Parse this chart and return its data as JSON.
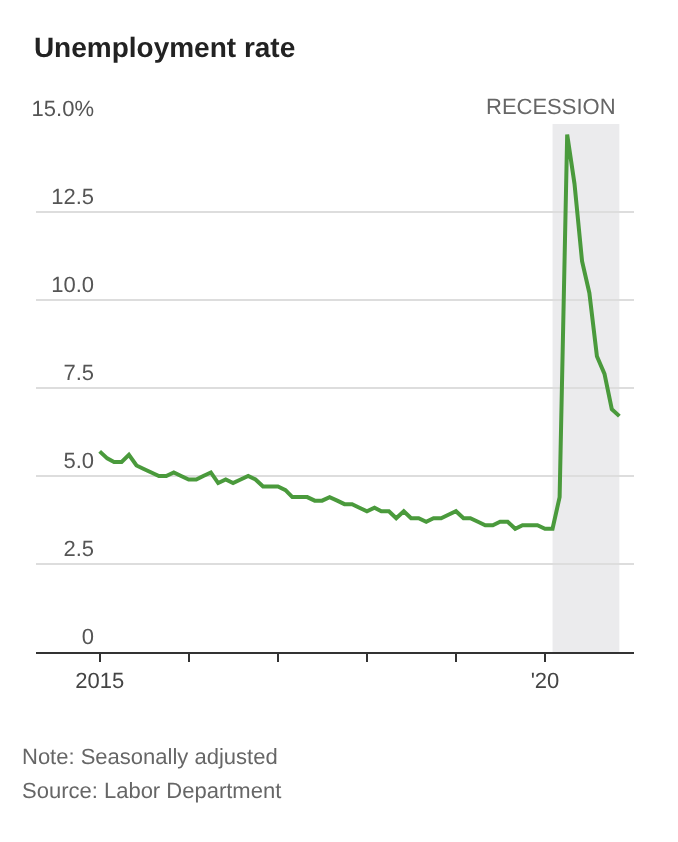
{
  "chart_data": {
    "type": "line",
    "title": "Unemployment rate",
    "x": [
      "2015-01",
      "2015-02",
      "2015-03",
      "2015-04",
      "2015-05",
      "2015-06",
      "2015-07",
      "2015-08",
      "2015-09",
      "2015-10",
      "2015-11",
      "2015-12",
      "2016-01",
      "2016-02",
      "2016-03",
      "2016-04",
      "2016-05",
      "2016-06",
      "2016-07",
      "2016-08",
      "2016-09",
      "2016-10",
      "2016-11",
      "2016-12",
      "2017-01",
      "2017-02",
      "2017-03",
      "2017-04",
      "2017-05",
      "2017-06",
      "2017-07",
      "2017-08",
      "2017-09",
      "2017-10",
      "2017-11",
      "2017-12",
      "2018-01",
      "2018-02",
      "2018-03",
      "2018-04",
      "2018-05",
      "2018-06",
      "2018-07",
      "2018-08",
      "2018-09",
      "2018-10",
      "2018-11",
      "2018-12",
      "2019-01",
      "2019-02",
      "2019-03",
      "2019-04",
      "2019-05",
      "2019-06",
      "2019-07",
      "2019-08",
      "2019-09",
      "2019-10",
      "2019-11",
      "2019-12",
      "2020-01",
      "2020-02",
      "2020-03",
      "2020-04",
      "2020-05",
      "2020-06",
      "2020-07",
      "2020-08",
      "2020-09",
      "2020-10",
      "2020-11"
    ],
    "series": [
      {
        "color": "#4a9a3c",
        "values": [
          5.7,
          5.5,
          5.4,
          5.4,
          5.6,
          5.3,
          5.2,
          5.1,
          5.0,
          5.0,
          5.1,
          5.0,
          4.9,
          4.9,
          5.0,
          5.1,
          4.8,
          4.9,
          4.8,
          4.9,
          5.0,
          4.9,
          4.7,
          4.7,
          4.7,
          4.6,
          4.4,
          4.4,
          4.4,
          4.3,
          4.3,
          4.4,
          4.3,
          4.2,
          4.2,
          4.1,
          4.0,
          4.1,
          4.0,
          4.0,
          3.8,
          4.0,
          3.8,
          3.8,
          3.7,
          3.8,
          3.8,
          3.9,
          4.0,
          3.8,
          3.8,
          3.7,
          3.6,
          3.6,
          3.7,
          3.7,
          3.5,
          3.6,
          3.6,
          3.6,
          3.5,
          3.5,
          4.4,
          14.7,
          13.3,
          11.1,
          10.2,
          8.4,
          7.9,
          6.9,
          6.7
        ]
      }
    ],
    "xlim": [
      "2014-04-15",
      "2020-12-31"
    ],
    "xticks": [
      {
        "value": "2015-01-01",
        "label": "2015"
      },
      {
        "value": "2016-01-01",
        "label": null
      },
      {
        "value": "2017-01-01",
        "label": null
      },
      {
        "value": "2018-01-01",
        "label": null
      },
      {
        "value": "2019-01-01",
        "label": null
      },
      {
        "value": "2020-01-01",
        "label": "'20"
      }
    ],
    "ylim": [
      0,
      15
    ],
    "yticks": [
      0,
      2.5,
      {
        "value": 5,
        "label": "5.0"
      },
      7.5,
      {
        "value": 10,
        "label": "10.0"
      },
      12.5,
      {
        "value": 15,
        "label": "15.0%"
      }
    ],
    "bands": [
      {
        "axis": "x",
        "from": "2020-02",
        "to": "2020-11",
        "label": "RECESSION",
        "color": "#ebebed"
      }
    ],
    "grid": "y",
    "annotations": [
      "Note: Seasonally adjusted",
      "Source: Labor Department"
    ]
  }
}
